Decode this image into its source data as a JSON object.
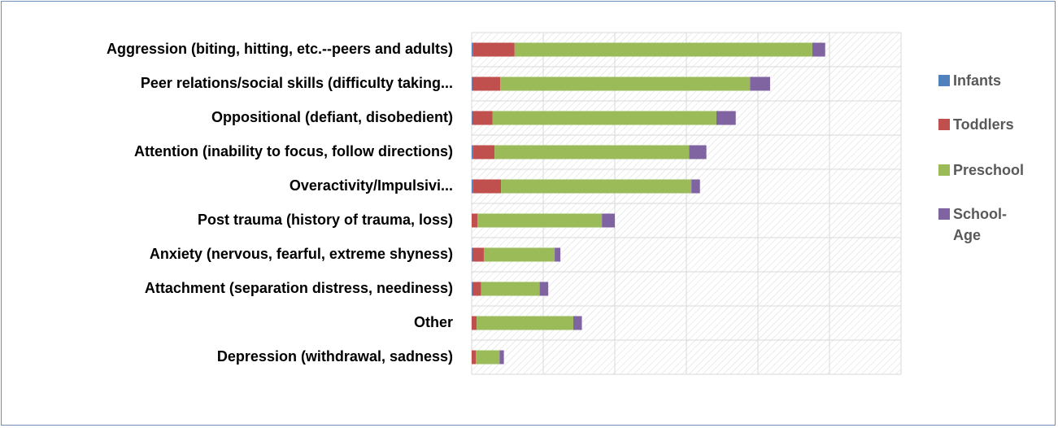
{
  "chart_data": {
    "type": "stacked-bar-horizontal",
    "categories": [
      "Aggression (biting, hitting, etc.--peers and adults)",
      "Peer relations/social skills (difficulty taking...",
      "Oppositional (defiant, disobedient)",
      "Attention (inability to focus, follow directions)",
      "Overactivity/Impulsivi...",
      "Post trauma (history of trauma, loss)",
      "Anxiety (nervous, fearful, extreme shyness)",
      "Attachment (separation distress, neediness)",
      "Other",
      "Depression (withdrawal, sadness)"
    ],
    "series": [
      {
        "name": "Infants",
        "color": "#4f81bd",
        "values": [
          0.2,
          0.1,
          0.1,
          0.2,
          0.2,
          0,
          0.1,
          0.1,
          0,
          0
        ]
      },
      {
        "name": "Toddlers",
        "color": "#c0504d",
        "values": [
          5.8,
          3.9,
          2.8,
          3.0,
          3.9,
          0.8,
          1.6,
          1.2,
          0.7,
          0.6
        ]
      },
      {
        "name": "Preschool",
        "color": "#9bbb59",
        "values": [
          41.6,
          34.9,
          31.3,
          27.2,
          26.6,
          17.4,
          9.9,
          8.2,
          13.5,
          3.3
        ]
      },
      {
        "name": "School-Age",
        "color": "#8064a2",
        "values": [
          1.8,
          2.8,
          2.7,
          2.4,
          1.2,
          1.8,
          0.8,
          1.2,
          1.2,
          0.6
        ]
      }
    ],
    "xlim": [
      0,
      60
    ],
    "xticks": [
      0,
      10,
      20,
      30,
      40,
      50,
      60
    ],
    "grid": true,
    "legend": "right"
  }
}
